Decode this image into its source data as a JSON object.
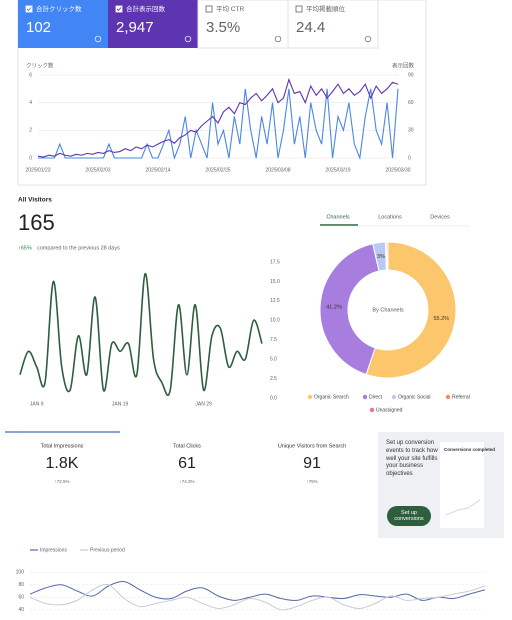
{
  "metrics": [
    {
      "label": "合計クリック数",
      "value": "102"
    },
    {
      "label": "合計表示回数",
      "value": "2,947"
    },
    {
      "label": "平均 CTR",
      "value": "3.5%"
    },
    {
      "label": "平均掲載順位",
      "value": "24.4"
    }
  ],
  "visitors": {
    "title": "All Visitors",
    "value": "165",
    "change": "↑65%",
    "note": "compared to the previous 28 days"
  },
  "tabs": [
    "Channels",
    "Locations",
    "Devices"
  ],
  "search_stats": [
    {
      "label": "Total Impressions",
      "value": "1.8K",
      "change": "↑72.5%"
    },
    {
      "label": "Total Clicks",
      "value": "61",
      "change": "↑74.3%"
    },
    {
      "label": "Unique Visitors from Search",
      "value": "91",
      "change": "↑75%"
    }
  ],
  "setup_card": {
    "text": "Set up conversion events to track how well your site fulfills your business objectives",
    "button": "Set up conversions",
    "preview_title": "Conversions completed"
  },
  "chart_data": [
    {
      "type": "line",
      "y_label": "クリック数",
      "y2_label": "表示回数",
      "categories": [
        "2025/01/23",
        null,
        null,
        null,
        null,
        null,
        null,
        null,
        null,
        null,
        null,
        "2025/02/03",
        null,
        null,
        null,
        null,
        null,
        null,
        null,
        null,
        null,
        null,
        "2025/02/14",
        null,
        null,
        null,
        null,
        null,
        null,
        null,
        null,
        null,
        null,
        "2025/02/25",
        null,
        null,
        null,
        null,
        null,
        null,
        null,
        null,
        null,
        null,
        "2025/03/08",
        null,
        null,
        null,
        null,
        null,
        null,
        null,
        null,
        null,
        null,
        "2025/03/19",
        null,
        null,
        null,
        null,
        null,
        null,
        null,
        null,
        null,
        null,
        "2025/03/30"
      ],
      "series": [
        {
          "color": "#4a86e8",
          "values": [
            0,
            0,
            0,
            0,
            1,
            0,
            0,
            0,
            0,
            0,
            0,
            0,
            0,
            1,
            0,
            0,
            0,
            0,
            0,
            0,
            1,
            0,
            0,
            1,
            2,
            0,
            1,
            3,
            0,
            2,
            1,
            0,
            4,
            1,
            2,
            0,
            3,
            1,
            5,
            2,
            0,
            3,
            1,
            4,
            0,
            2,
            5,
            1,
            3,
            0,
            4,
            2,
            1,
            5,
            0,
            3,
            2,
            4,
            1,
            0,
            3,
            5,
            2,
            1,
            4,
            0,
            5
          ]
        },
        {
          "color": "#5e35b1",
          "axis": "y2",
          "values": [
            2,
            1,
            3,
            2,
            5,
            3,
            2,
            4,
            3,
            5,
            4,
            6,
            5,
            8,
            6,
            7,
            10,
            8,
            12,
            10,
            14,
            12,
            15,
            18,
            20,
            16,
            22,
            25,
            30,
            28,
            35,
            40,
            45,
            38,
            50,
            55,
            48,
            60,
            58,
            65,
            70,
            62,
            68,
            75,
            60,
            65,
            85,
            70,
            72,
            60,
            78,
            68,
            75,
            65,
            72,
            80,
            70,
            75,
            68,
            72,
            80,
            65,
            78,
            70,
            75,
            82,
            80
          ]
        }
      ],
      "ylim": [
        0,
        6
      ],
      "yticks": [
        0,
        2,
        4,
        6
      ],
      "y2lim": [
        0,
        90
      ],
      "y2ticks": [
        0,
        30,
        60,
        90
      ],
      "grid": true
    },
    {
      "type": "line",
      "categories": [
        null,
        null,
        "JAN 9",
        null,
        null,
        null,
        null,
        null,
        null,
        null,
        null,
        null,
        "JAN 19",
        null,
        null,
        null,
        null,
        null,
        null,
        null,
        null,
        null,
        "JAN 29",
        null,
        null,
        null,
        null,
        null,
        null,
        null
      ],
      "series": [
        {
          "color": "#2e5e3e",
          "values": [
            3,
            6,
            4,
            2,
            15,
            4,
            1,
            8,
            3,
            13,
            1,
            7,
            6,
            7,
            3,
            16,
            5,
            2,
            1,
            12,
            3,
            12,
            1,
            8,
            9,
            4,
            6,
            5,
            10,
            7
          ]
        }
      ],
      "ylim": [
        0,
        17.5
      ],
      "yticks": [
        {
          "value": 0,
          "label": "0.0"
        },
        2.5,
        {
          "value": 5,
          "label": "5.0"
        },
        7.5,
        {
          "value": 10,
          "label": "10.0"
        },
        12.5,
        {
          "value": 15,
          "label": "15.0"
        },
        17.5
      ],
      "grid": false
    },
    {
      "type": "donut",
      "center_label": "By Channels",
      "categories": [
        "Organic Search",
        "Direct",
        "Organic Social",
        "Referral",
        "Unassigned"
      ],
      "values": [
        55.2,
        41.2,
        3,
        0.3,
        0.3
      ],
      "value_labels": [
        "55.2%",
        "41.2%",
        "3%",
        null,
        null
      ],
      "colors": [
        "#fcc66c",
        "#a77de0",
        "#b9c9f2",
        "#f28c6a",
        "#e8768a"
      ]
    },
    {
      "type": "line",
      "categories": [
        null,
        null,
        null,
        null,
        null,
        null,
        null,
        null,
        null,
        null,
        null,
        null,
        null,
        null,
        null,
        null,
        null,
        null,
        null,
        null,
        null,
        null,
        null,
        null,
        null,
        null,
        null,
        null,
        null,
        null
      ],
      "series": [
        {
          "name": "Impressions",
          "color": "#5468a8",
          "values": [
            65,
            75,
            80,
            70,
            62,
            78,
            85,
            72,
            60,
            58,
            70,
            75,
            62,
            55,
            60,
            65,
            58,
            55,
            62,
            60,
            58,
            64,
            62,
            60,
            65,
            55,
            60,
            58,
            65,
            72
          ]
        },
        {
          "name": "Previous period",
          "color": "#c8ccd4",
          "values": [
            60,
            50,
            48,
            55,
            72,
            80,
            58,
            45,
            50,
            55,
            60,
            50,
            42,
            48,
            58,
            52,
            40,
            45,
            55,
            60,
            48,
            42,
            50,
            62,
            55,
            58,
            60,
            65,
            70,
            78
          ]
        }
      ],
      "ylim": [
        30,
        110
      ],
      "yticks": [
        40,
        60,
        80,
        100
      ],
      "grid": true
    }
  ]
}
